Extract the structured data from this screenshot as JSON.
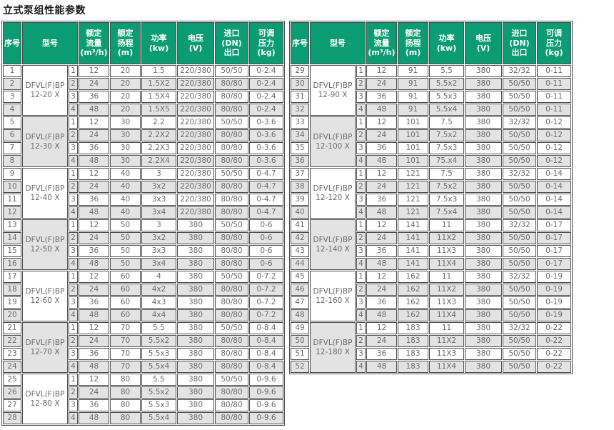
{
  "title": "立式泵组性能参数",
  "colors": {
    "header_bg": "#0c9c73",
    "header_text": "#ffffff",
    "row_alt_bg": "#e3e3e3",
    "border": "#4f4f4f",
    "body_text": "#6b6b6b",
    "title_text": "#1a1a1a"
  },
  "header_columns": [
    {
      "id": "serial",
      "lines": [
        "序号"
      ]
    },
    {
      "id": "model",
      "lines": [
        "型号"
      ]
    },
    {
      "id": "flow",
      "lines": [
        "额定",
        "流量",
        "(m³/h)"
      ]
    },
    {
      "id": "head",
      "lines": [
        "额定",
        "扬程",
        "(m)"
      ]
    },
    {
      "id": "power",
      "lines": [
        "功率",
        "(kw)"
      ]
    },
    {
      "id": "voltage",
      "lines": [
        "电压",
        "(V)"
      ]
    },
    {
      "id": "dn",
      "lines": [
        "进口",
        "(DN)",
        "出口"
      ]
    },
    {
      "id": "pressure",
      "lines": [
        "可调",
        "压力",
        "(kg)"
      ]
    }
  ],
  "tables": [
    {
      "id": "left",
      "groups": [
        {
          "model": [
            "DFVL(F)BP",
            "12-20 X"
          ],
          "rows": [
            [
              "1",
              "1",
              "12",
              "20",
              "1.5",
              "220/380",
              "50/50",
              "0-2.4"
            ],
            [
              "2",
              "2",
              "24",
              "20",
              "1.5X2",
              "220/380",
              "80/80",
              "0-2.4"
            ],
            [
              "3",
              "3",
              "36",
              "20",
              "1.5X4",
              "220/380",
              "80/80",
              "0-2.4"
            ],
            [
              "4",
              "4",
              "48",
              "20",
              "1.5X5",
              "220/380",
              "80/80",
              "0-2.4"
            ]
          ]
        },
        {
          "model": [
            "DFVL(F)BP",
            "12-30 X"
          ],
          "rows": [
            [
              "5",
              "1",
              "12",
              "30",
              "2.2",
              "220/380",
              "50/50",
              "0-3.6"
            ],
            [
              "6",
              "2",
              "24",
              "30",
              "2.2X2",
              "220/380",
              "80/80",
              "0-3.6"
            ],
            [
              "7",
              "3",
              "36",
              "30",
              "2.2X3",
              "220/380",
              "80/80",
              "0-3.6"
            ],
            [
              "8",
              "4",
              "48",
              "30",
              "2.2X4",
              "220/380",
              "80/80",
              "0-3.6"
            ]
          ]
        },
        {
          "model": [
            "DFVL(F)BP",
            "12-40 X"
          ],
          "rows": [
            [
              "9",
              "1",
              "12",
              "40",
              "3",
              "220/380",
              "50/50",
              "0-4.7"
            ],
            [
              "10",
              "2",
              "24",
              "40",
              "3x2",
              "220/380",
              "80/80",
              "0-4.7"
            ],
            [
              "11",
              "3",
              "36",
              "40",
              "3x3",
              "220/380",
              "80/80",
              "0-4.7"
            ],
            [
              "12",
              "4",
              "48",
              "40",
              "3x4",
              "220/380",
              "80/80",
              "0-4.7"
            ]
          ]
        },
        {
          "model": [
            "DFVL(F)BP",
            "12-50 X"
          ],
          "rows": [
            [
              "13",
              "1",
              "12",
              "50",
              "3",
              "380",
              "50/50",
              "0-6"
            ],
            [
              "14",
              "2",
              "24",
              "50",
              "3x2",
              "380",
              "80/80",
              "0-6"
            ],
            [
              "15",
              "3",
              "36",
              "50",
              "3x3",
              "380",
              "80/80",
              "0-6"
            ],
            [
              "16",
              "4",
              "48",
              "50",
              "3x4",
              "380",
              "80/80",
              "0-6"
            ]
          ]
        },
        {
          "model": [
            "DFVL(F)BP",
            "12-60 X"
          ],
          "rows": [
            [
              "17",
              "1",
              "12",
              "60",
              "4",
              "380",
              "50/50",
              "0-7.2"
            ],
            [
              "18",
              "2",
              "24",
              "60",
              "4x2",
              "380",
              "80/80",
              "0-7.2"
            ],
            [
              "19",
              "3",
              "36",
              "60",
              "4x3",
              "380",
              "80/80",
              "0-7.2"
            ],
            [
              "20",
              "4",
              "48",
              "60",
              "4x4",
              "380",
              "80/80",
              "0-7.2"
            ]
          ]
        },
        {
          "model": [
            "DFVL(F)BP",
            "12-70 X"
          ],
          "rows": [
            [
              "21",
              "1",
              "12",
              "70",
              "5.5",
              "380",
              "50/50",
              "0-8.4"
            ],
            [
              "22",
              "2",
              "24",
              "70",
              "5.5x2",
              "380",
              "80/80",
              "0-8.4"
            ],
            [
              "23",
              "3",
              "36",
              "70",
              "5.5x3",
              "380",
              "80/80",
              "0-8.4"
            ],
            [
              "24",
              "4",
              "48",
              "70",
              "5.5x4",
              "380",
              "80/80",
              "0-8.4"
            ]
          ]
        },
        {
          "model": [
            "DFVL(F)BP",
            "12-80 X"
          ],
          "rows": [
            [
              "25",
              "1",
              "12",
              "80",
              "5.5",
              "380",
              "50/50",
              "0-9.6"
            ],
            [
              "26",
              "2",
              "24",
              "80",
              "5.5x2",
              "380",
              "80/80",
              "0-9.6"
            ],
            [
              "27",
              "3",
              "36",
              "80",
              "5.5x3",
              "380",
              "80/80",
              "0-9.6"
            ],
            [
              "28",
              "4",
              "48",
              "80",
              "5.5x4",
              "380",
              "80/80",
              "0-9.6"
            ]
          ]
        }
      ]
    },
    {
      "id": "right",
      "groups": [
        {
          "model": [
            "DFVL(F)BP",
            "12-90 X"
          ],
          "rows": [
            [
              "29",
              "1",
              "12",
              "91",
              "5.5",
              "380",
              "32/32",
              "0-11"
            ],
            [
              "30",
              "2",
              "24",
              "91",
              "5.5x2",
              "380",
              "50/50",
              "0-11"
            ],
            [
              "31",
              "3",
              "36",
              "91",
              "5.5x3",
              "380",
              "50/50",
              "0-11"
            ],
            [
              "32",
              "4",
              "48",
              "91",
              "5.5x4",
              "380",
              "50/50",
              "0-11"
            ]
          ]
        },
        {
          "model": [
            "DFVL(F)BP",
            "12-100 X"
          ],
          "rows": [
            [
              "33",
              "1",
              "12",
              "101",
              "7.5",
              "380",
              "32/32",
              "0-12"
            ],
            [
              "34",
              "2",
              "24",
              "101",
              "7.5x2",
              "380",
              "50/50",
              "0-12"
            ],
            [
              "35",
              "3",
              "36",
              "101",
              "7.5x3",
              "380",
              "50/50",
              "0-12"
            ],
            [
              "36",
              "4",
              "48",
              "101",
              "75.x4",
              "380",
              "50/50",
              "0-12"
            ]
          ]
        },
        {
          "model": [
            "DFVL(F)BP",
            "12-120 X"
          ],
          "rows": [
            [
              "37",
              "1",
              "12",
              "121",
              "7.5",
              "380",
              "32/32",
              "0-14"
            ],
            [
              "38",
              "2",
              "24",
              "121",
              "7.5x2",
              "380",
              "50/50",
              "0-14"
            ],
            [
              "39",
              "3",
              "36",
              "121",
              "7.5x3",
              "380",
              "50/50",
              "0-14"
            ],
            [
              "40",
              "4",
              "48",
              "121",
              "7.5x4",
              "380",
              "50/50",
              "0-14"
            ]
          ]
        },
        {
          "model": [
            "DFVL(F)BP",
            "12-140 X"
          ],
          "rows": [
            [
              "41",
              "1",
              "12",
              "141",
              "11",
              "380",
              "32/32",
              "0-17"
            ],
            [
              "42",
              "2",
              "24",
              "141",
              "11X2",
              "380",
              "50/50",
              "0-17"
            ],
            [
              "43",
              "3",
              "36",
              "141",
              "11X3",
              "380",
              "50/50",
              "0-17"
            ],
            [
              "44",
              "4",
              "48",
              "141",
              "11X4",
              "380",
              "50/50",
              "0-17"
            ]
          ]
        },
        {
          "model": [
            "DFVL(F)BP",
            "12-160 X"
          ],
          "rows": [
            [
              "45",
              "1",
              "12",
              "162",
              "11",
              "380",
              "32/32",
              "0-19"
            ],
            [
              "46",
              "2",
              "24",
              "162",
              "11X2",
              "380",
              "50/50",
              "0-19"
            ],
            [
              "47",
              "3",
              "36",
              "162",
              "11X3",
              "380",
              "50/50",
              "0-19"
            ],
            [
              "48",
              "4",
              "48",
              "162",
              "11X4",
              "380",
              "50/50",
              "0-19"
            ]
          ]
        },
        {
          "model": [
            "DFVL(F)BP",
            "12-180 X"
          ],
          "rows": [
            [
              "49",
              "1",
              "12",
              "183",
              "11",
              "380",
              "32/32",
              "0-22"
            ],
            [
              "50",
              "2",
              "24",
              "183",
              "11X2",
              "380",
              "50/50",
              "0-22"
            ],
            [
              "51",
              "3",
              "36",
              "183",
              "11X3",
              "380",
              "50/50",
              "0-22"
            ],
            [
              "52",
              "4",
              "48",
              "183",
              "11X4",
              "380",
              "50/50",
              "0-22"
            ]
          ]
        }
      ]
    }
  ]
}
